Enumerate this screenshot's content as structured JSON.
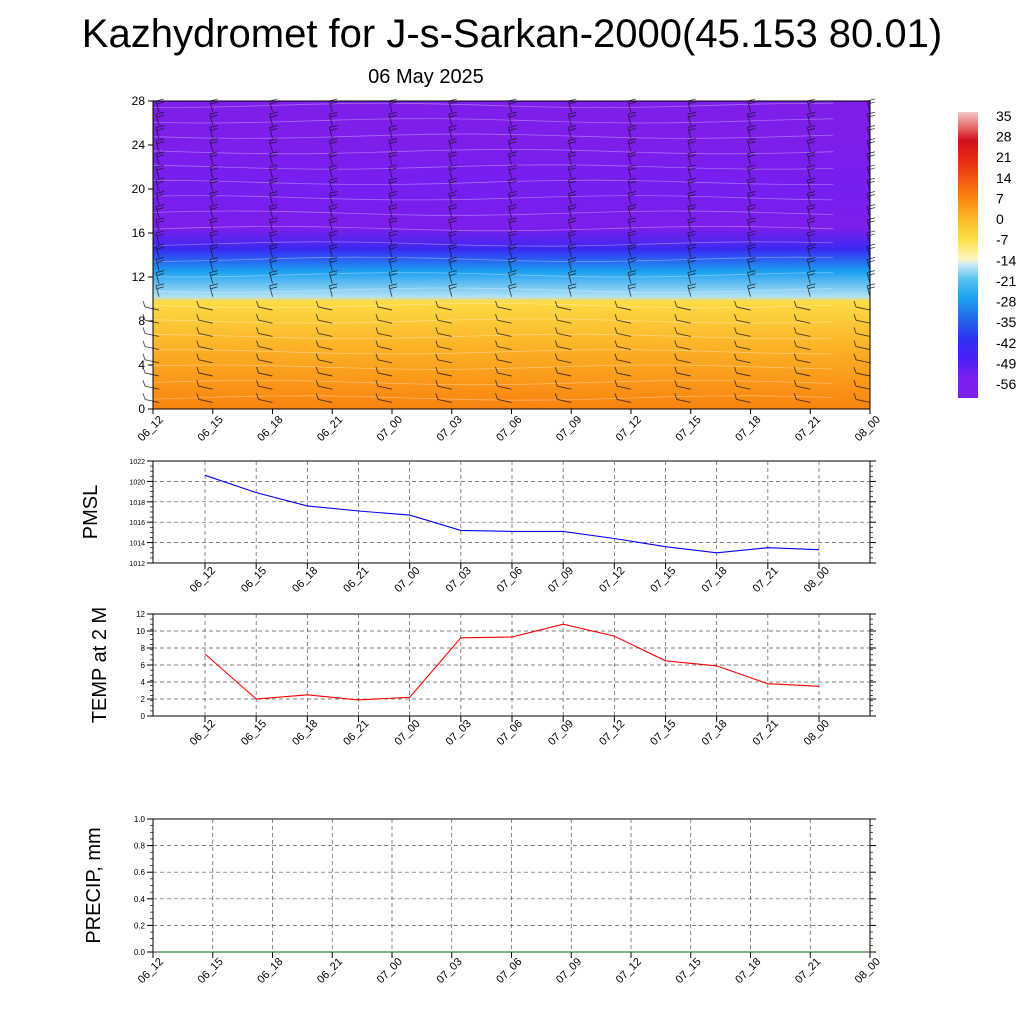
{
  "title": "Kazhydromet for J-s-Sarkan-2000(45.153 80.01)",
  "subtitle": "06 May 2025",
  "colors": {
    "pmsl_line": "#0000ff",
    "temp_line": "#ff0000",
    "precip_line": "#006400",
    "grid": "#555555"
  },
  "chart_data": [
    {
      "type": "heatmap",
      "name": "cross-section",
      "x_ticks": [
        "06_12",
        "06_15",
        "06_18",
        "06_21",
        "07_00",
        "07_03",
        "07_06",
        "07_09",
        "07_12",
        "07_15",
        "07_18",
        "07_21",
        "08_00"
      ],
      "y_ticks": [
        0,
        4,
        8,
        12,
        16,
        20,
        24,
        28
      ],
      "ylim": [
        0,
        28
      ],
      "colorbar": {
        "labels": [
          "35",
          "28",
          "21",
          "14",
          "7",
          "0",
          "-7",
          "-14",
          "-21",
          "-28",
          "-35",
          "-42",
          "-49",
          "-56"
        ],
        "range": [
          -63,
          38
        ]
      },
      "layers": [
        {
          "alt": 0,
          "value": 8
        },
        {
          "alt": 5,
          "value": 2
        },
        {
          "alt": 9.8,
          "value": -6
        },
        {
          "alt": 10.2,
          "value": -17
        },
        {
          "alt": 12.5,
          "value": -28
        },
        {
          "alt": 14.5,
          "value": -45
        },
        {
          "alt": 16.5,
          "value": -60
        },
        {
          "alt": 20,
          "value": -55
        },
        {
          "alt": 24,
          "value": -60
        },
        {
          "alt": 28,
          "value": -62
        }
      ]
    },
    {
      "type": "line",
      "name": "pmsl",
      "ylabel": "PMSL",
      "x_ticks": [
        "06_12",
        "06_15",
        "06_18",
        "06_21",
        "07_00",
        "07_03",
        "07_06",
        "07_09",
        "07_12",
        "07_15",
        "07_18",
        "07_21",
        "08_00"
      ],
      "ylim": [
        1012,
        1022
      ],
      "y_ticks": [
        1012,
        1014,
        1016,
        1018,
        1020,
        1022
      ],
      "values": [
        1020.6,
        1018.9,
        1017.6,
        1017.1,
        1016.7,
        1015.2,
        1015.1,
        1015.1,
        1014.4,
        1013.6,
        1013.0,
        1013.5,
        1013.3
      ]
    },
    {
      "type": "line",
      "name": "temp",
      "ylabel": "TEMP at 2 M",
      "x_ticks": [
        "06_12",
        "06_15",
        "06_18",
        "06_21",
        "07_00",
        "07_03",
        "07_06",
        "07_09",
        "07_12",
        "07_15",
        "07_18",
        "07_21",
        "08_00"
      ],
      "ylim": [
        0,
        12
      ],
      "y_ticks": [
        0,
        2,
        4,
        6,
        8,
        10,
        12
      ],
      "values": [
        7.3,
        2.0,
        2.5,
        1.9,
        2.2,
        9.2,
        9.3,
        10.8,
        9.4,
        6.5,
        5.9,
        3.8,
        3.5
      ]
    },
    {
      "type": "line",
      "name": "precip",
      "ylabel": "PRECIP, mm",
      "x_ticks": [
        "06_12",
        "06_15",
        "06_18",
        "06_21",
        "07_00",
        "07_03",
        "07_06",
        "07_09",
        "07_12",
        "07_15",
        "07_18",
        "07_21",
        "08_00"
      ],
      "ylim": [
        0,
        1
      ],
      "y_ticks": [
        "0.0",
        "0.2",
        "0.4",
        "0.6",
        "0.8",
        "1.0"
      ],
      "values": [
        0,
        0,
        0,
        0,
        0,
        0,
        0,
        0,
        0,
        0,
        0,
        0,
        0
      ]
    }
  ]
}
